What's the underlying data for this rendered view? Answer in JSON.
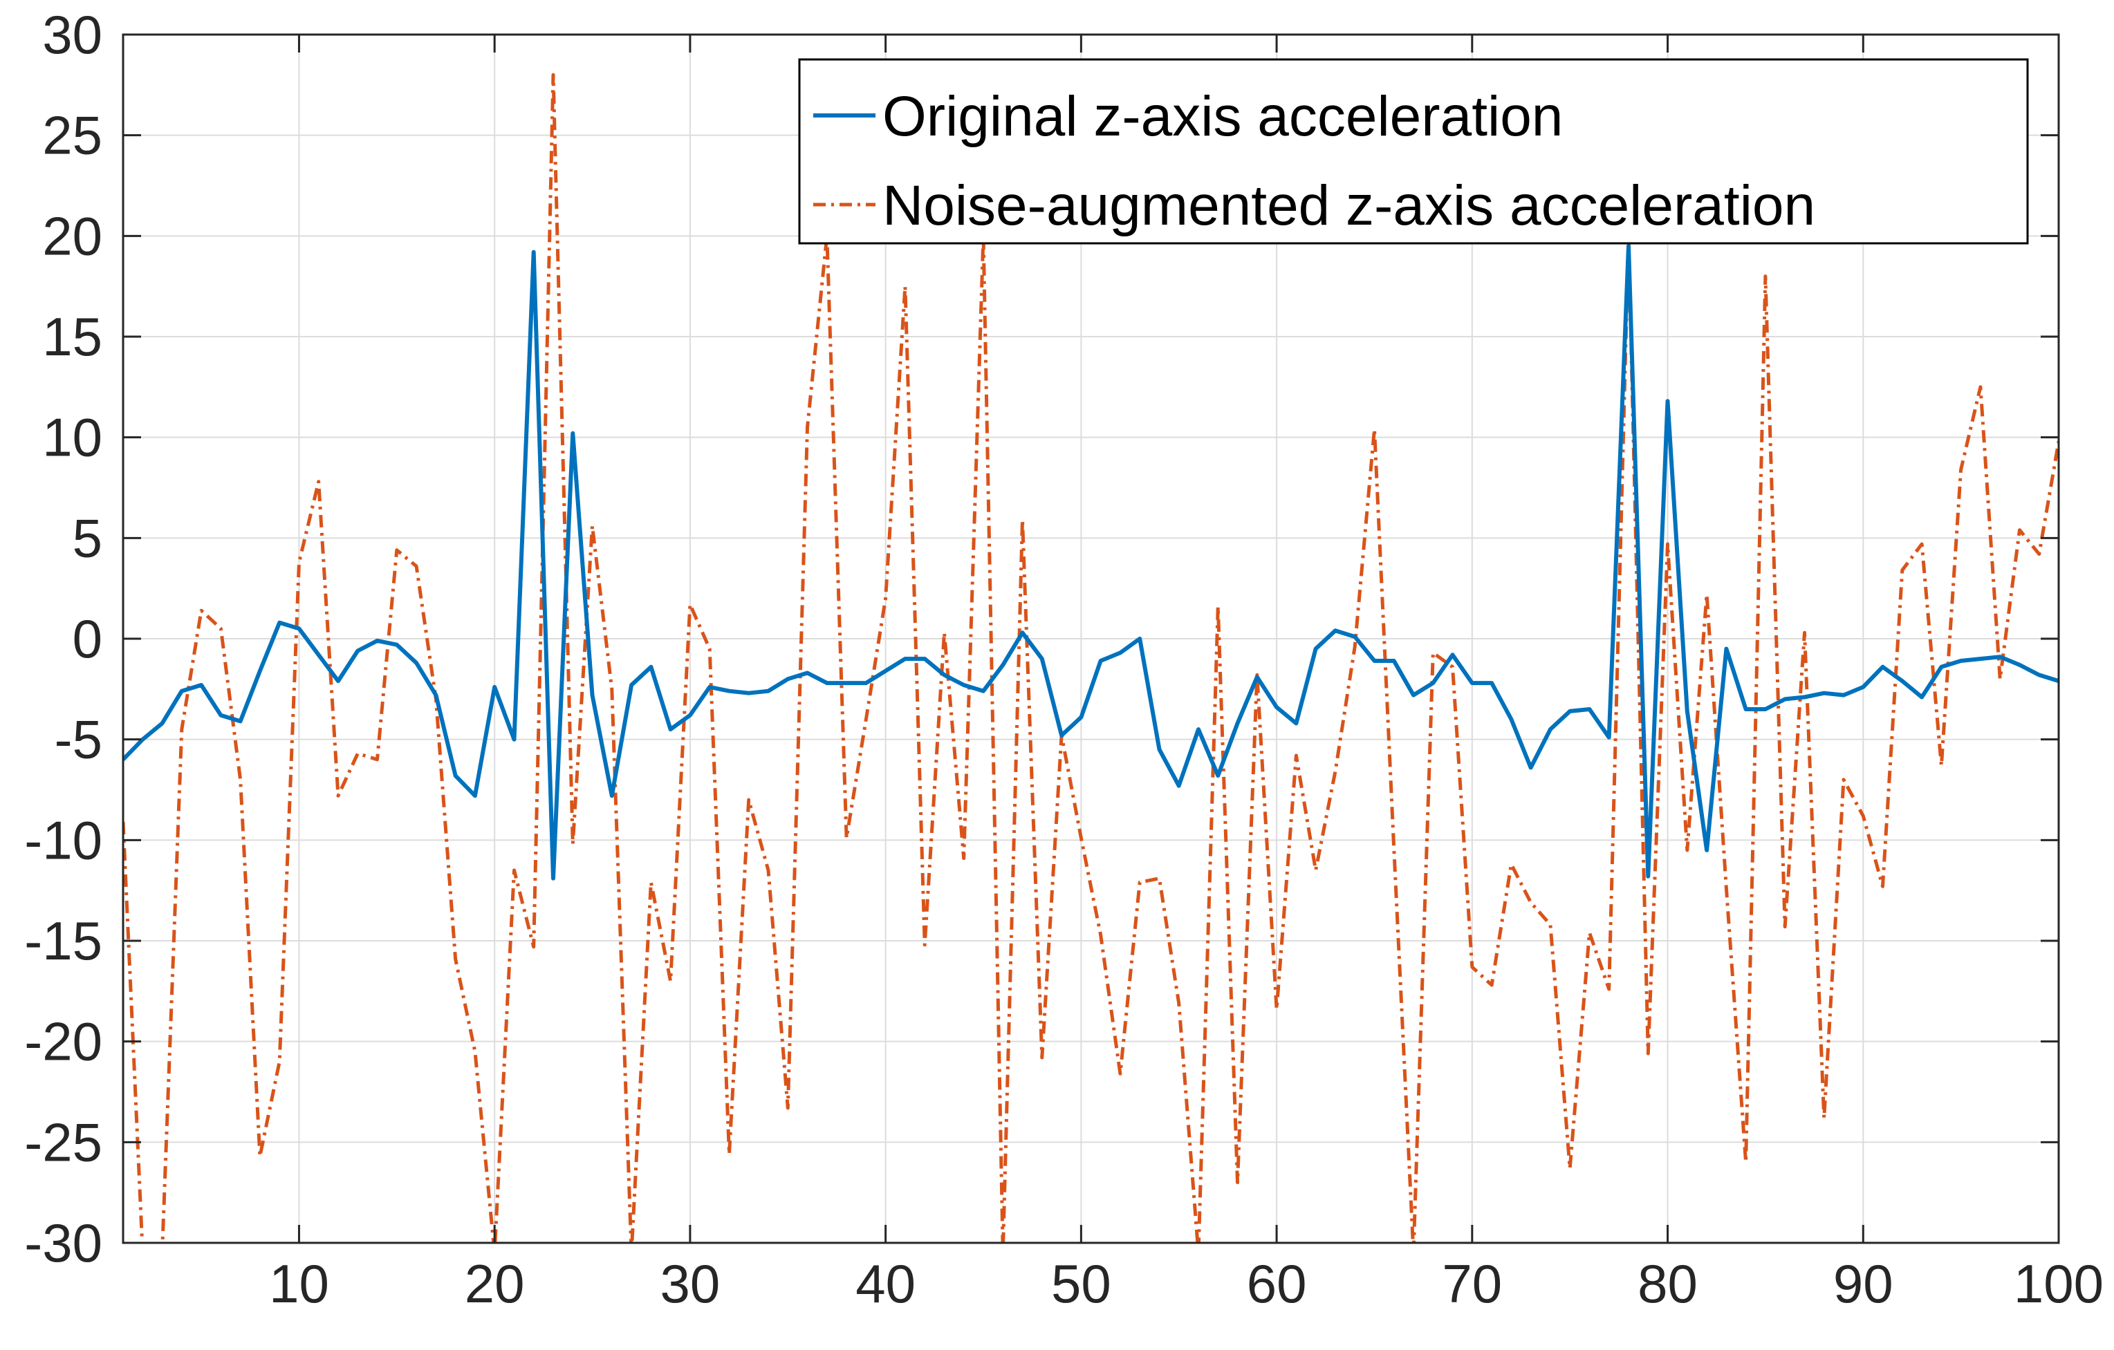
{
  "chart_data": {
    "type": "line",
    "title": "",
    "xlabel": "",
    "ylabel": "",
    "xlim": [
      1,
      100
    ],
    "ylim": [
      -30,
      30
    ],
    "xticks": [
      10,
      20,
      30,
      40,
      50,
      60,
      70,
      80,
      90,
      100
    ],
    "yticks": [
      30,
      25,
      20,
      15,
      10,
      5,
      0,
      -5,
      -10,
      -15,
      -20,
      -25,
      -30
    ],
    "xtick_labels": [
      "10",
      "20",
      "30",
      "40",
      "50",
      "60",
      "70",
      "80",
      "90",
      "100"
    ],
    "ytick_labels": [
      "30",
      "25",
      "20",
      "15",
      "10",
      "5",
      "0",
      "-5",
      "-10",
      "-15",
      "-20",
      "-25",
      "-30"
    ],
    "grid": true,
    "legend_position": "top-right",
    "x": [
      1,
      2,
      3,
      4,
      5,
      6,
      7,
      8,
      9,
      10,
      11,
      12,
      13,
      14,
      15,
      16,
      17,
      18,
      19,
      20,
      21,
      22,
      23,
      24,
      25,
      26,
      27,
      28,
      29,
      30,
      31,
      32,
      33,
      34,
      35,
      36,
      37,
      38,
      39,
      40,
      41,
      42,
      43,
      44,
      45,
      46,
      47,
      48,
      49,
      50,
      51,
      52,
      53,
      54,
      55,
      56,
      57,
      58,
      59,
      60,
      61,
      62,
      63,
      64,
      65,
      66,
      67,
      68,
      69,
      70,
      71,
      72,
      73,
      74,
      75,
      76,
      77,
      78,
      79,
      80,
      81,
      82,
      83,
      84,
      85,
      86,
      87,
      88,
      89,
      90,
      91,
      92,
      93,
      94,
      95,
      96,
      97,
      98,
      99,
      100
    ],
    "series": [
      {
        "name": "Original z-axis acceleration",
        "color": "#0072BD",
        "style": "solid",
        "values": [
          -6.0,
          -5.0,
          -4.2,
          -2.6,
          -2.3,
          -3.8,
          -4.1,
          -1.6,
          0.8,
          0.5,
          -0.8,
          -2.1,
          -0.6,
          -0.1,
          -0.3,
          -1.2,
          -2.8,
          -6.8,
          -7.8,
          -2.4,
          -5.0,
          19.2,
          -11.9,
          10.2,
          -2.8,
          -7.8,
          -2.3,
          -1.4,
          -4.5,
          -3.8,
          -2.4,
          -2.6,
          -2.7,
          -2.6,
          -2.0,
          -1.7,
          -2.2,
          -2.2,
          -2.2,
          -1.6,
          -1.0,
          -1.0,
          -1.8,
          -2.3,
          -2.6,
          -1.3,
          0.3,
          -1.0,
          -4.8,
          -3.9,
          -1.1,
          -0.7,
          0.0,
          -5.5,
          -7.3,
          -4.5,
          -6.8,
          -4.2,
          -1.9,
          -3.4,
          -4.2,
          -0.5,
          0.4,
          0.1,
          -1.1,
          -1.1,
          -2.8,
          -2.2,
          -0.8,
          -2.2,
          -2.2,
          -4.0,
          -6.4,
          -4.5,
          -3.6,
          -3.5,
          -4.9,
          19.5,
          -11.8,
          11.8,
          -3.6,
          -10.5,
          -0.5,
          -3.5,
          -3.5,
          -3.0,
          -2.9,
          -2.7,
          -2.8,
          -2.4,
          -1.4,
          -2.1,
          -2.9,
          -1.4,
          -1.1,
          -1.0,
          -0.9,
          -1.3,
          -1.8,
          -2.1
        ]
      },
      {
        "name": "Noise-augmented z-axis acceleration",
        "color": "#D95319",
        "style": "dashdot",
        "values": [
          -9.1,
          -30.5,
          -30.5,
          -4.5,
          1.4,
          0.5,
          -7.0,
          -25.7,
          -21.0,
          3.8,
          7.8,
          -7.8,
          -5.7,
          -6.0,
          4.4,
          3.6,
          -3.0,
          -15.9,
          -20.5,
          -30.5,
          -11.5,
          -15.3,
          28.0,
          -10.2,
          5.6,
          -2.5,
          -30.5,
          -12.1,
          -17.0,
          1.7,
          -0.5,
          -25.6,
          -8.0,
          -11.5,
          -23.3,
          10.5,
          20.0,
          -9.9,
          -4.0,
          2.0,
          17.5,
          -15.2,
          0.3,
          -10.9,
          20.0,
          -30.5,
          5.9,
          -20.8,
          -4.8,
          -9.9,
          -14.7,
          -21.6,
          -12.1,
          -11.9,
          -18.1,
          -30.5,
          1.6,
          -27.0,
          -1.8,
          -18.4,
          -5.8,
          -11.5,
          -6.6,
          -0.4,
          10.4,
          -10.4,
          -30.5,
          -0.7,
          -1.4,
          -16.3,
          -17.2,
          -11.2,
          -13.1,
          -14.2,
          -26.3,
          -14.6,
          -17.4,
          20.0,
          -20.6,
          4.7,
          -10.5,
          2.2,
          -12.4,
          -26.0,
          18.0,
          -14.3,
          0.3,
          -23.8,
          -7.0,
          -8.8,
          -12.3,
          3.4,
          4.7,
          -6.3,
          8.4,
          12.5,
          -2.0,
          5.4,
          4.2,
          9.8
        ]
      }
    ]
  }
}
